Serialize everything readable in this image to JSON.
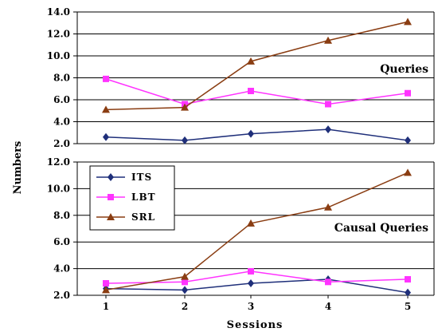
{
  "chart_data": [
    {
      "type": "line",
      "title": "Queries",
      "x": [
        1,
        2,
        3,
        4,
        5
      ],
      "ylim": [
        2.0,
        14.0
      ],
      "yticks": [
        "2.0",
        "4.0",
        "6.0",
        "8.0",
        "10.0",
        "12.0",
        "14.0"
      ],
      "grid": true,
      "series": [
        {
          "name": "ITS",
          "color": "#1f2f7a",
          "marker": "diamond",
          "values": [
            2.6,
            2.3,
            2.9,
            3.3,
            2.3
          ]
        },
        {
          "name": "LBT",
          "color": "#ff33ff",
          "marker": "square",
          "values": [
            7.9,
            5.6,
            6.8,
            5.6,
            6.6
          ]
        },
        {
          "name": "SRL",
          "color": "#8a3d12",
          "marker": "triangle",
          "values": [
            5.1,
            5.3,
            9.5,
            11.4,
            13.1
          ]
        }
      ]
    },
    {
      "type": "line",
      "title": "Causal Queries",
      "x": [
        1,
        2,
        3,
        4,
        5
      ],
      "xticks": [
        "1",
        "2",
        "3",
        "4",
        "5"
      ],
      "ylim": [
        2.0,
        12.0
      ],
      "yticks": [
        "2.0",
        "4.0",
        "6.0",
        "8.0",
        "10.0",
        "12.0"
      ],
      "grid": true,
      "legend": "top-left",
      "series": [
        {
          "name": "ITS",
          "color": "#1f2f7a",
          "marker": "diamond",
          "values": [
            2.5,
            2.4,
            2.9,
            3.2,
            2.2
          ]
        },
        {
          "name": "LBT",
          "color": "#ff33ff",
          "marker": "square",
          "values": [
            2.9,
            3.0,
            3.8,
            3.0,
            3.2
          ]
        },
        {
          "name": "SRL",
          "color": "#8a3d12",
          "marker": "triangle",
          "values": [
            2.4,
            3.4,
            7.4,
            8.6,
            11.2
          ]
        }
      ]
    }
  ],
  "xlabel": "Sessions",
  "ylabel": "Numbers"
}
